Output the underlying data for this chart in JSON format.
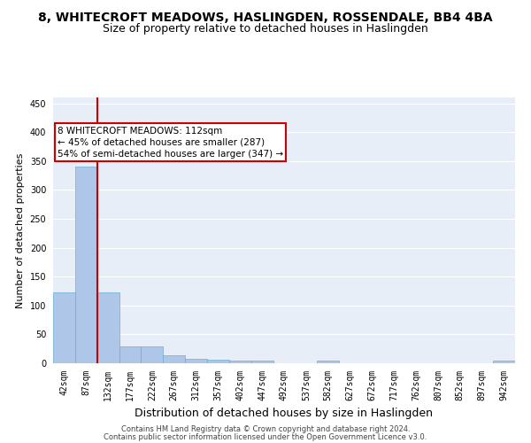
{
  "title": "8, WHITECROFT MEADOWS, HASLINGDEN, ROSSENDALE, BB4 4BA",
  "subtitle": "Size of property relative to detached houses in Haslingden",
  "xlabel": "Distribution of detached houses by size in Haslingden",
  "ylabel": "Number of detached properties",
  "bin_labels": [
    "42sqm",
    "87sqm",
    "132sqm",
    "177sqm",
    "222sqm",
    "267sqm",
    "312sqm",
    "357sqm",
    "402sqm",
    "447sqm",
    "492sqm",
    "537sqm",
    "582sqm",
    "627sqm",
    "672sqm",
    "717sqm",
    "762sqm",
    "807sqm",
    "852sqm",
    "897sqm",
    "942sqm"
  ],
  "bar_heights": [
    122,
    340,
    122,
    29,
    29,
    14,
    8,
    6,
    4,
    4,
    0,
    0,
    4,
    0,
    0,
    0,
    0,
    0,
    0,
    0,
    4
  ],
  "bar_color": "#aec6e8",
  "bar_edge_color": "#6aaed6",
  "vline_x": 1.5,
  "vline_color": "#cc0000",
  "annotation_box_text": "8 WHITECROFT MEADOWS: 112sqm\n← 45% of detached houses are smaller (287)\n54% of semi-detached houses are larger (347) →",
  "ylim": [
    0,
    460
  ],
  "yticks": [
    0,
    50,
    100,
    150,
    200,
    250,
    300,
    350,
    400,
    450
  ],
  "background_color": "#e8eef7",
  "grid_color": "#ffffff",
  "footer_line1": "Contains HM Land Registry data © Crown copyright and database right 2024.",
  "footer_line2": "Contains public sector information licensed under the Open Government Licence v3.0.",
  "title_fontsize": 10,
  "subtitle_fontsize": 9,
  "xlabel_fontsize": 9,
  "ylabel_fontsize": 8,
  "tick_fontsize": 7,
  "annotation_fontsize": 7.5,
  "footer_fontsize": 6
}
